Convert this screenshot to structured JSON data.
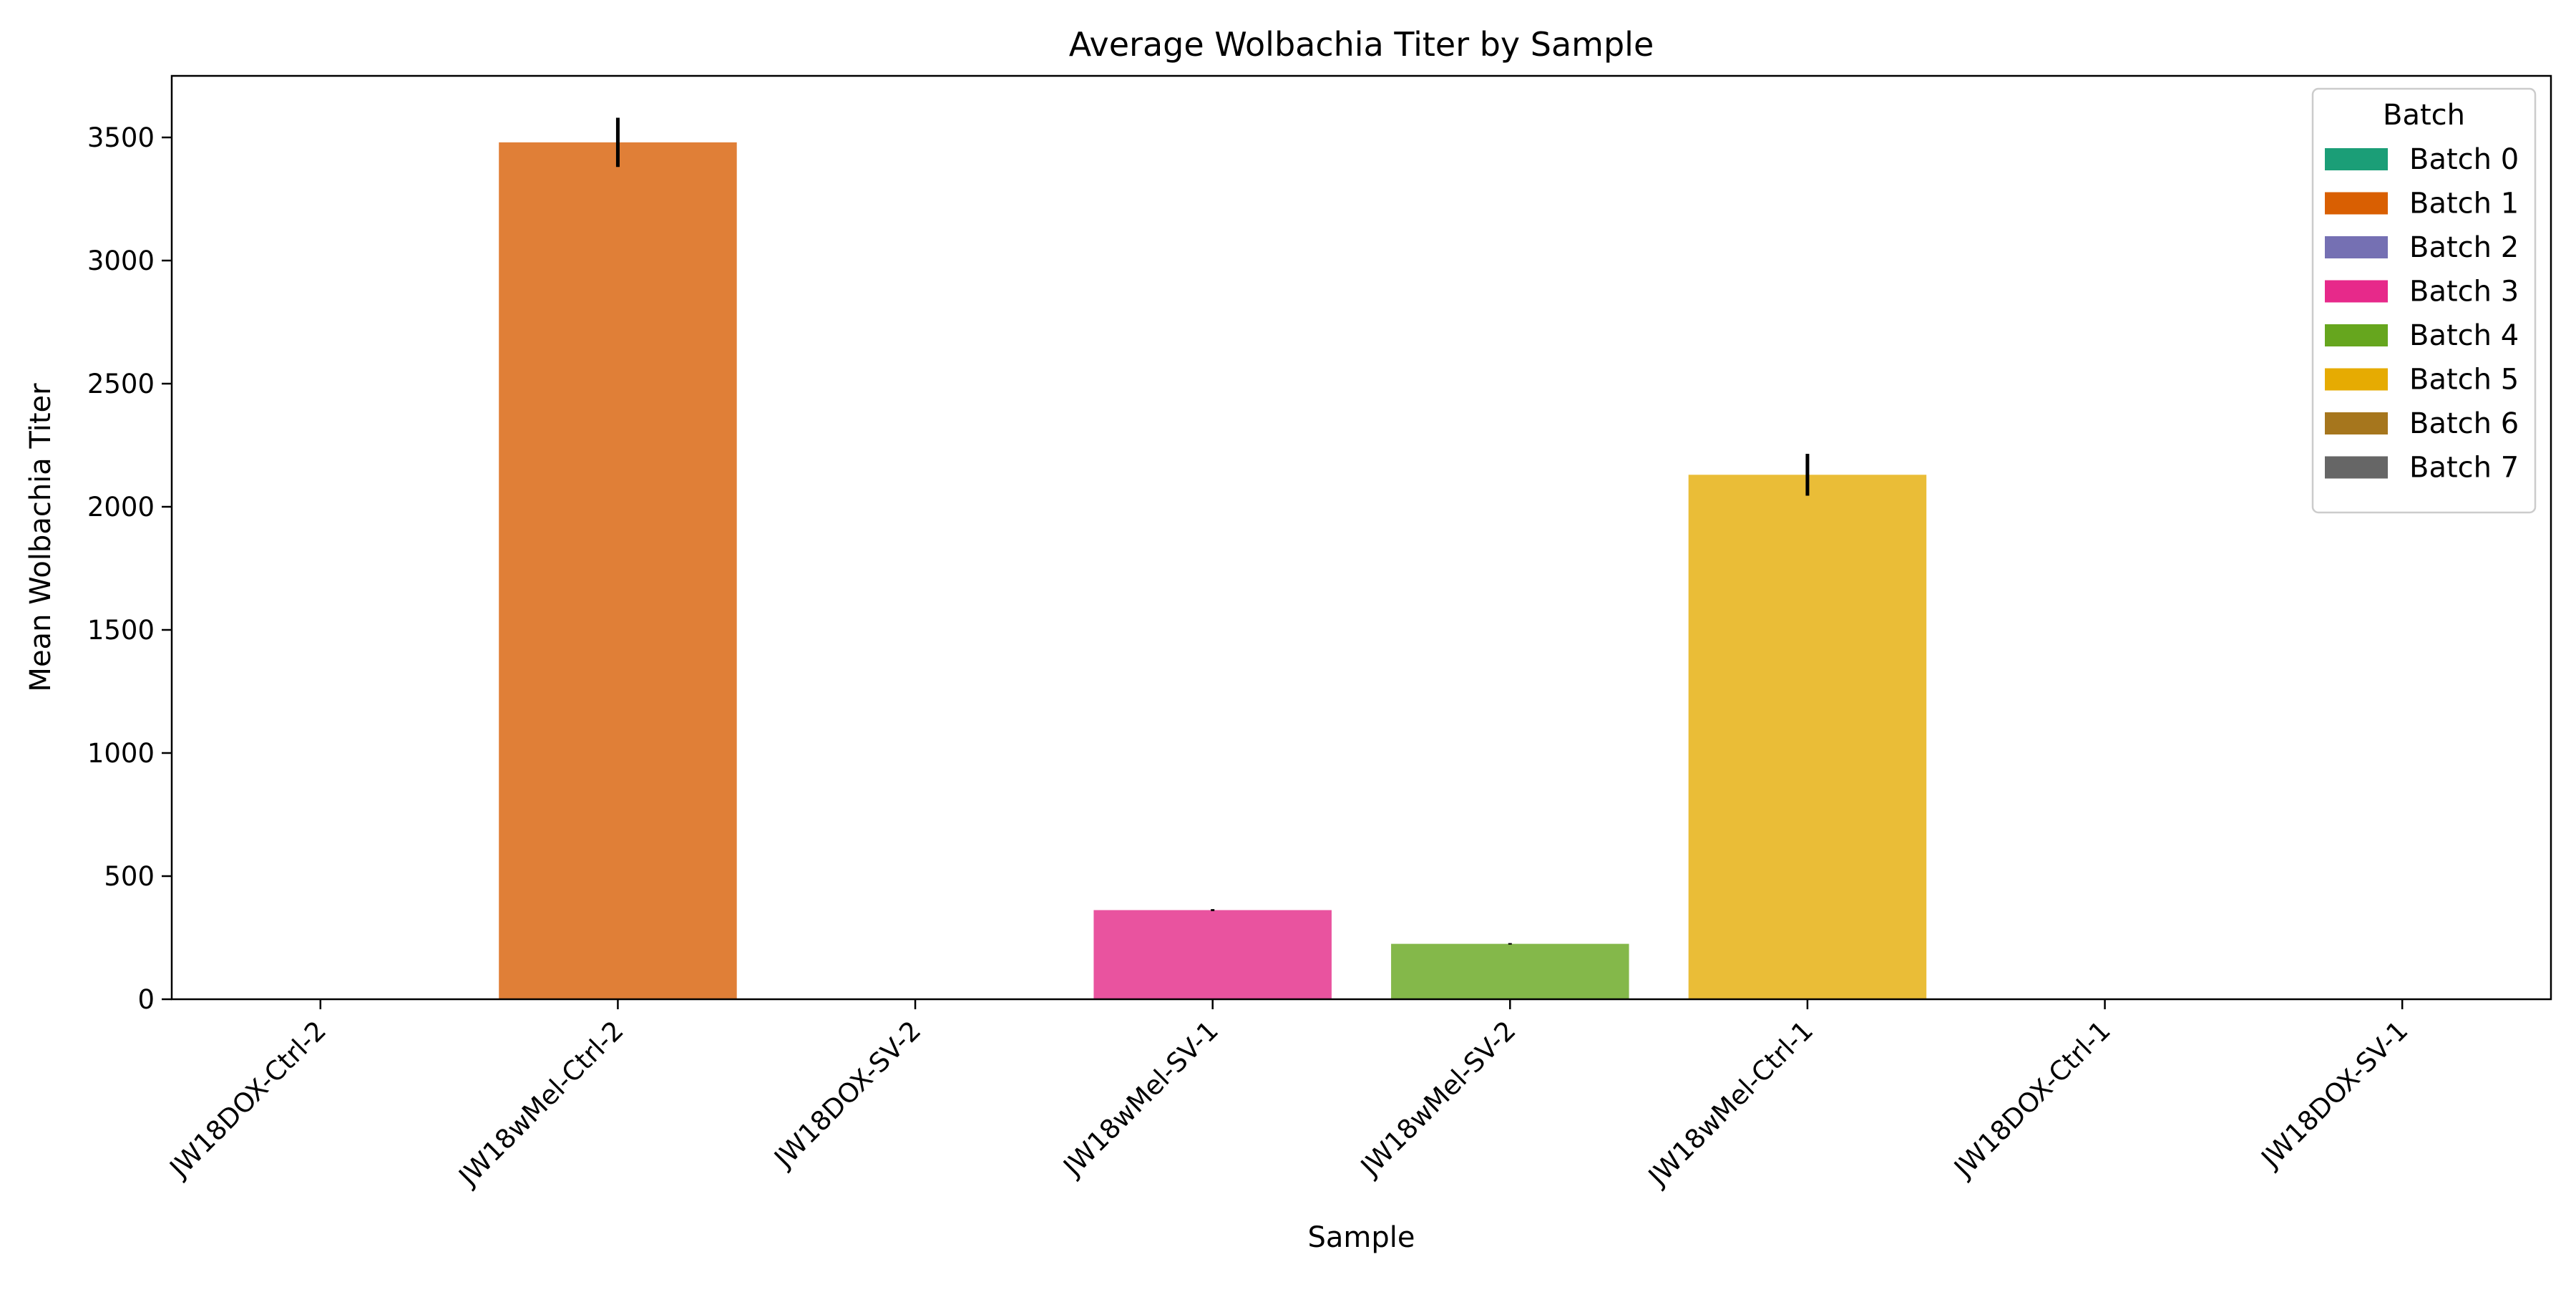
{
  "chart_data": {
    "type": "bar",
    "title": "Average Wolbachia Titer by Sample",
    "xlabel": "Sample",
    "ylabel": "Mean Wolbachia Titer",
    "ylim": [
      0,
      3750
    ],
    "yticks": [
      0,
      500,
      1000,
      1500,
      2000,
      2500,
      3000,
      3500
    ],
    "grid": false,
    "categories": [
      "JW18DOX-Ctrl-2",
      "JW18wMel-Ctrl-2",
      "JW18DOX-SV-2",
      "JW18wMel-SV-1",
      "JW18wMel-SV-2",
      "JW18wMel-Ctrl-1",
      "JW18DOX-Ctrl-1",
      "JW18DOX-SV-1"
    ],
    "bars": [
      {
        "category": "JW18DOX-Ctrl-2",
        "batch": "Batch 0",
        "value": 0,
        "err_low": 0,
        "err_high": 0
      },
      {
        "category": "JW18wMel-Ctrl-2",
        "batch": "Batch 1",
        "value": 3480,
        "err_low": 3380,
        "err_high": 3580
      },
      {
        "category": "JW18DOX-SV-2",
        "batch": "Batch 2",
        "value": 0,
        "err_low": 0,
        "err_high": 0
      },
      {
        "category": "JW18wMel-SV-1",
        "batch": "Batch 3",
        "value": 362,
        "err_low": 358,
        "err_high": 366
      },
      {
        "category": "JW18wMel-SV-2",
        "batch": "Batch 4",
        "value": 225,
        "err_low": 222,
        "err_high": 228
      },
      {
        "category": "JW18wMel-Ctrl-1",
        "batch": "Batch 5",
        "value": 2130,
        "err_low": 2045,
        "err_high": 2215
      },
      {
        "category": "JW18DOX-Ctrl-1",
        "batch": "Batch 6",
        "value": 0,
        "err_low": 0,
        "err_high": 0
      },
      {
        "category": "JW18DOX-SV-1",
        "batch": "Batch 7",
        "value": 0,
        "err_low": 0,
        "err_high": 0
      }
    ],
    "bar_colors": [
      "#1b9e77",
      "#e07f37",
      "#7570b3",
      "#e9539f",
      "#84b84a",
      "#eabd37",
      "#a6761d",
      "#666666"
    ],
    "legend": {
      "title": "Batch",
      "placement": "top-right",
      "entries": [
        {
          "label": "Batch 0",
          "color": "#1b9e77"
        },
        {
          "label": "Batch 1",
          "color": "#d95f02"
        },
        {
          "label": "Batch 2",
          "color": "#7570b3"
        },
        {
          "label": "Batch 3",
          "color": "#e7298a"
        },
        {
          "label": "Batch 4",
          "color": "#66a61e"
        },
        {
          "label": "Batch 5",
          "color": "#e6ab02"
        },
        {
          "label": "Batch 6",
          "color": "#a6761d"
        },
        {
          "label": "Batch 7",
          "color": "#666666"
        }
      ]
    }
  }
}
